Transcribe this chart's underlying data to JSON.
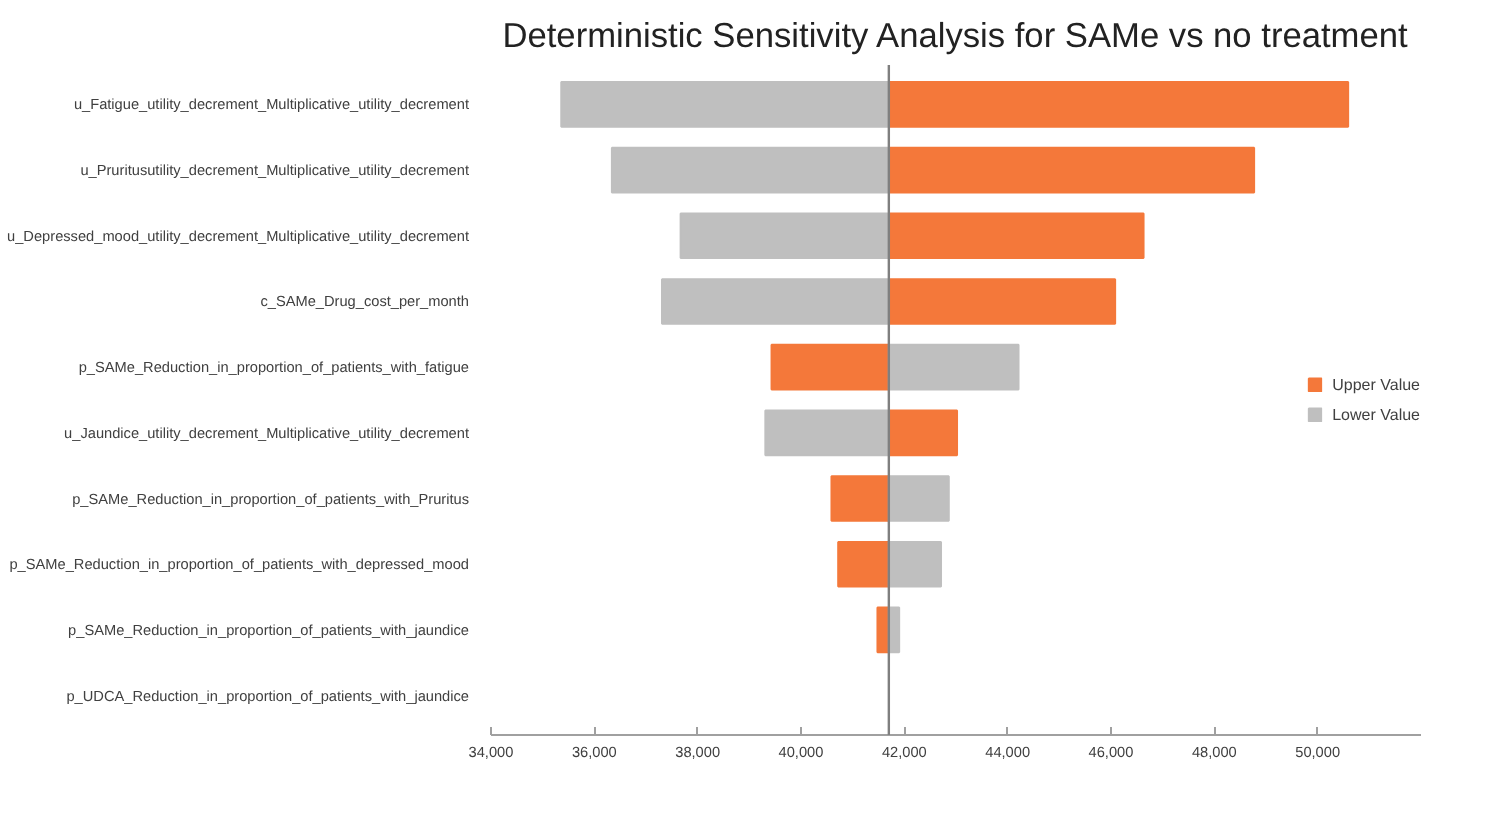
{
  "chart_data": {
    "type": "bar",
    "orientation": "horizontal",
    "title": "Deterministic Sensitivity Analysis for SAMe vs no treatment",
    "categories": [
      "u_Fatigue_utility_decrement_Multiplicative_utility_decrement",
      "u_Pruritusutility_decrement_Multiplicative_utility_decrement",
      "u_Depressed_mood_utility_decrement_Multiplicative_utility_decrement",
      "c_SAMe_Drug_cost_per_month",
      "p_SAMe_Reduction_in_proportion_of_patients_with_fatigue",
      "u_Jaundice_utility_decrement_Multiplicative_utility_decrement",
      "p_SAMe_Reduction_in_proportion_of_patients_with_Pruritus",
      "p_SAMe_Reduction_in_proportion_of_patients_with_depressed_mood",
      "p_SAMe_Reduction_in_proportion_of_patients_with_jaundice",
      "p_UDCA_Reduction_in_proportion_of_patients_with_jaundice"
    ],
    "series": [
      {
        "name": "Upper Value",
        "color": "#f4783a",
        "base": [
          41700,
          41700,
          41700,
          41700,
          41700,
          41700,
          41700,
          41700,
          41700,
          null
        ],
        "values": [
          8890,
          7070,
          4930,
          4380,
          -2270,
          1320,
          -1110,
          -980,
          -220,
          null
        ]
      },
      {
        "name": "Lower Value",
        "color": "#bfbfbf",
        "base": [
          41700,
          41700,
          41700,
          41700,
          41700,
          41700,
          41700,
          41700,
          41700,
          null
        ],
        "values": [
          -6340,
          -5360,
          -4030,
          -4390,
          2510,
          -2390,
          1160,
          1010,
          200,
          null
        ]
      }
    ],
    "xlim": [
      34000,
      52000
    ],
    "xticks": [
      {
        "value": 34000,
        "label": "34,000"
      },
      {
        "value": 36000,
        "label": "36,000"
      },
      {
        "value": 38000,
        "label": "38,000"
      },
      {
        "value": 40000,
        "label": "40,000"
      },
      {
        "value": 42000,
        "label": "42,000"
      },
      {
        "value": 44000,
        "label": "44,000"
      },
      {
        "value": 46000,
        "label": "46,000"
      },
      {
        "value": 48000,
        "label": "48,000"
      },
      {
        "value": 50000,
        "label": "50,000"
      }
    ],
    "ref_lines": [
      {
        "axis": "x",
        "value": 41700,
        "color": "#7f7f7f"
      }
    ],
    "legend": "right",
    "grid": false
  }
}
